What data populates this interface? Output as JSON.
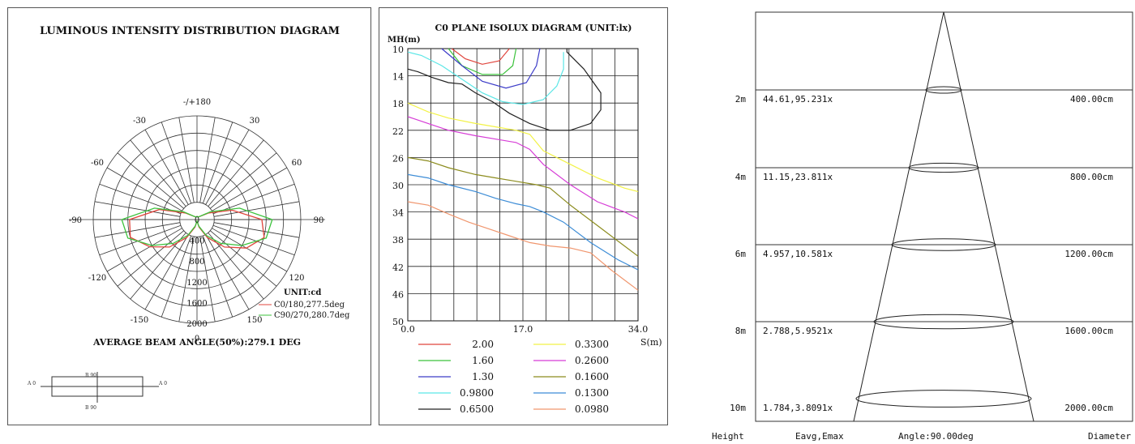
{
  "polar": {
    "title": "LUMINOUS INTENSITY DISTRIBUTION DIAGRAM",
    "angle_labels": [
      "-/+180",
      "150",
      "120",
      "90",
      "60",
      "30",
      "0",
      "-30",
      "-60",
      "-90",
      "-120",
      "-150"
    ],
    "radial_labels": [
      "0",
      "400",
      "800",
      "1200",
      "1600",
      "2000"
    ],
    "unit": "UNIT:cd",
    "legend": [
      "C0/180,277.5deg",
      "C90/270,280.7deg"
    ],
    "beam_text": "AVERAGE BEAM ANGLE(50%):279.1 DEG",
    "colors": {
      "c0": "#e0443c",
      "c90": "#3cc23c"
    },
    "icon_labels": {
      "top": "B 90",
      "bottom": "B 90",
      "left": "A 0",
      "right": "A 0"
    }
  },
  "isolux": {
    "title": "C0 PLANE ISOLUX DIAGRAM (UNIT:lx)",
    "ylabel": "MH(m)",
    "xlabel": "S(m)",
    "y_ticks": [
      "10",
      "14",
      "18",
      "22",
      "26",
      "30",
      "34",
      "38",
      "42",
      "46",
      "50"
    ],
    "x_ticks": [
      "0.0",
      "17.0",
      "34.0"
    ],
    "legend": [
      {
        "label": "2.00",
        "color": "#e0443c"
      },
      {
        "label": "0.3300",
        "color": "#f2f246"
      },
      {
        "label": "1.60",
        "color": "#3cc23c"
      },
      {
        "label": "0.2600",
        "color": "#d63cd6"
      },
      {
        "label": "1.30",
        "color": "#3c3cc8"
      },
      {
        "label": "0.1600",
        "color": "#8c8c1e"
      },
      {
        "label": "0.9800",
        "color": "#5ae6e6"
      },
      {
        "label": "0.1300",
        "color": "#3c8cd6"
      },
      {
        "label": "0.6500",
        "color": "#222222"
      },
      {
        "label": "0.0980",
        "color": "#f0966e"
      }
    ]
  },
  "chart_data": [
    {
      "type": "polar",
      "title": "LUMINOUS INTENSITY DISTRIBUTION DIAGRAM",
      "unit": "cd",
      "r_range": [
        0,
        2000
      ],
      "series": [
        {
          "name": "C0/180,277.5deg",
          "angles_deg": [
            -180,
            -150,
            -120,
            -105,
            -90,
            -75,
            -60,
            -45,
            -30,
            -15,
            0,
            15,
            30,
            45,
            60,
            75,
            90,
            105,
            120,
            150,
            180
          ],
          "values": [
            60,
            60,
            250,
            750,
            1300,
            1330,
            1050,
            750,
            400,
            150,
            30,
            150,
            400,
            750,
            1100,
            1340,
            1250,
            700,
            250,
            60,
            60
          ]
        },
        {
          "name": "C90/270,280.7deg",
          "angles_deg": [
            -180,
            -150,
            -120,
            -105,
            -90,
            -75,
            -60,
            -45,
            -30,
            -15,
            0,
            15,
            30,
            45,
            60,
            75,
            90,
            105,
            120,
            150,
            180
          ],
          "values": [
            60,
            60,
            300,
            850,
            1450,
            1380,
            1000,
            650,
            350,
            130,
            30,
            130,
            350,
            650,
            1000,
            1380,
            1450,
            850,
            300,
            60,
            60
          ]
        }
      ]
    },
    {
      "type": "line",
      "title": "C0 PLANE ISOLUX DIAGRAM (UNIT:lx)",
      "xlabel": "S(m)",
      "ylabel": "MH(m)",
      "xlim": [
        0,
        34
      ],
      "ylim": [
        10,
        50
      ],
      "series": [
        {
          "name": "2.00",
          "x": [
            6.5,
            8.5,
            11,
            13.5,
            15
          ],
          "y": [
            10,
            11.5,
            12.3,
            11.8,
            10
          ]
        },
        {
          "name": "1.60",
          "x": [
            6,
            8,
            11,
            14,
            15.5,
            16
          ],
          "y": [
            10,
            12.5,
            13.8,
            13.8,
            12.5,
            10
          ]
        },
        {
          "name": "1.30",
          "x": [
            5,
            8,
            11,
            14.5,
            17.5,
            19,
            19.5
          ],
          "y": [
            10,
            12.5,
            14.8,
            15.8,
            15,
            12.5,
            10
          ]
        },
        {
          "name": "0.9800",
          "x": [
            0,
            2,
            5,
            8,
            11,
            14,
            17,
            20,
            22,
            23,
            23
          ],
          "y": [
            10.5,
            11,
            12.5,
            14.5,
            16.5,
            17.8,
            18.2,
            17.5,
            15.5,
            13,
            10.5
          ]
        },
        {
          "name": "0.6500",
          "x": [
            0,
            1.5,
            3.5,
            6,
            8,
            10,
            12.5,
            15,
            18,
            21,
            24,
            27,
            28.5,
            28.5,
            26,
            23.5,
            23.5
          ],
          "y": [
            13,
            13.4,
            14.2,
            15,
            15.2,
            16.5,
            17.8,
            19.5,
            21,
            22,
            22,
            21,
            19,
            16.5,
            13,
            10.5,
            10
          ]
        },
        {
          "name": "0.3300",
          "x": [
            0,
            3,
            6,
            10,
            13,
            16,
            18,
            20,
            24,
            28,
            32,
            34
          ],
          "y": [
            18,
            19.3,
            20.2,
            21,
            21.5,
            22,
            22.6,
            25,
            27,
            29,
            30.5,
            31
          ]
        },
        {
          "name": "0.2600",
          "x": [
            0,
            3,
            6,
            10,
            13,
            16,
            18,
            20,
            24,
            28,
            32,
            34
          ],
          "y": [
            20,
            21,
            22,
            22.8,
            23.3,
            23.8,
            24.8,
            27,
            30,
            32.5,
            34,
            35
          ]
        },
        {
          "name": "0.1600",
          "x": [
            0,
            3,
            6,
            10,
            13,
            16,
            19,
            21,
            24,
            28,
            32,
            34
          ],
          "y": [
            26,
            26.5,
            27.5,
            28.5,
            29,
            29.5,
            30,
            30.5,
            33,
            36,
            39,
            40.5
          ]
        },
        {
          "name": "0.1300",
          "x": [
            0,
            3,
            6,
            10,
            13,
            16,
            18,
            20,
            23,
            27,
            31,
            34
          ],
          "y": [
            28.5,
            29,
            30,
            31,
            32,
            32.8,
            33.2,
            34,
            35.5,
            38.5,
            41,
            42.5
          ]
        },
        {
          "name": "0.0980",
          "x": [
            0,
            3,
            6,
            9,
            12,
            15,
            18,
            21,
            24,
            27,
            30,
            32,
            34
          ],
          "y": [
            32.5,
            33,
            34.3,
            35.5,
            36.5,
            37.5,
            38.5,
            39,
            39.3,
            40,
            42.5,
            44,
            45.5
          ]
        }
      ]
    },
    {
      "type": "table",
      "title": "",
      "angle": "Angle:90.00deg",
      "columns": [
        "Height",
        "Eavg,Emax",
        "Diameter"
      ],
      "rows": [
        {
          "height": "2m",
          "e": "44.61,95.231x",
          "diameter": "400.00cm"
        },
        {
          "height": "4m",
          "e": "11.15,23.811x",
          "diameter": "800.00cm"
        },
        {
          "height": "6m",
          "e": "4.957,10.581x",
          "diameter": "1200.00cm"
        },
        {
          "height": "8m",
          "e": "2.788,5.9521x",
          "diameter": "1600.00cm"
        },
        {
          "height": "10m",
          "e": "1.784,3.8091x",
          "diameter": "2000.00cm"
        }
      ]
    }
  ]
}
